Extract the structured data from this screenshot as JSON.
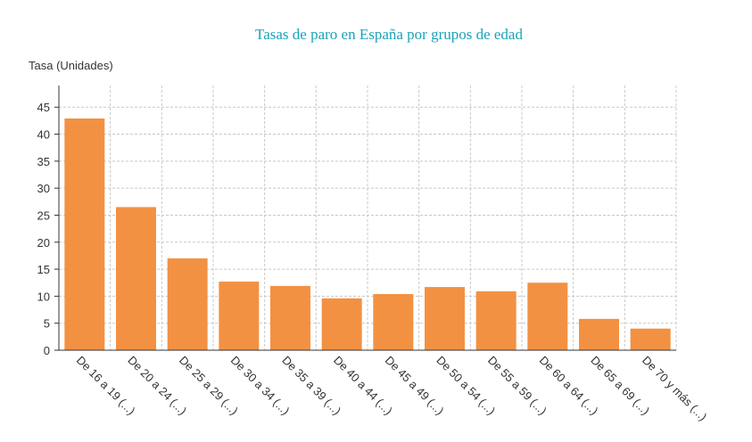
{
  "chart_data": {
    "type": "bar",
    "title": "Tasas de paro en España por grupos de edad",
    "y_label": "Tasa (Unidades)",
    "categories": [
      "De 16 a 19 (...)",
      "De 20 a 24 (...)",
      "De 25 a 29 (...)",
      "De 30 a 34 (...)",
      "De 35 a 39 (...)",
      "De 40 a 44 (...)",
      "De 45 a 49 (...)",
      "De 50 a 54 (...)",
      "De 55 a 59 (...)",
      "De 60 a 64 (...)",
      "De 65 a 69 (...)",
      "De 70 y más (...)"
    ],
    "values": [
      42.9,
      26.5,
      17.0,
      12.7,
      11.9,
      9.6,
      10.4,
      11.7,
      10.9,
      12.5,
      5.8,
      4.0
    ],
    "color": "#f39142",
    "ylim": [
      0,
      49
    ],
    "yticks": [
      0,
      5,
      10,
      15,
      20,
      25,
      30,
      35,
      40,
      45
    ],
    "grid": true
  }
}
